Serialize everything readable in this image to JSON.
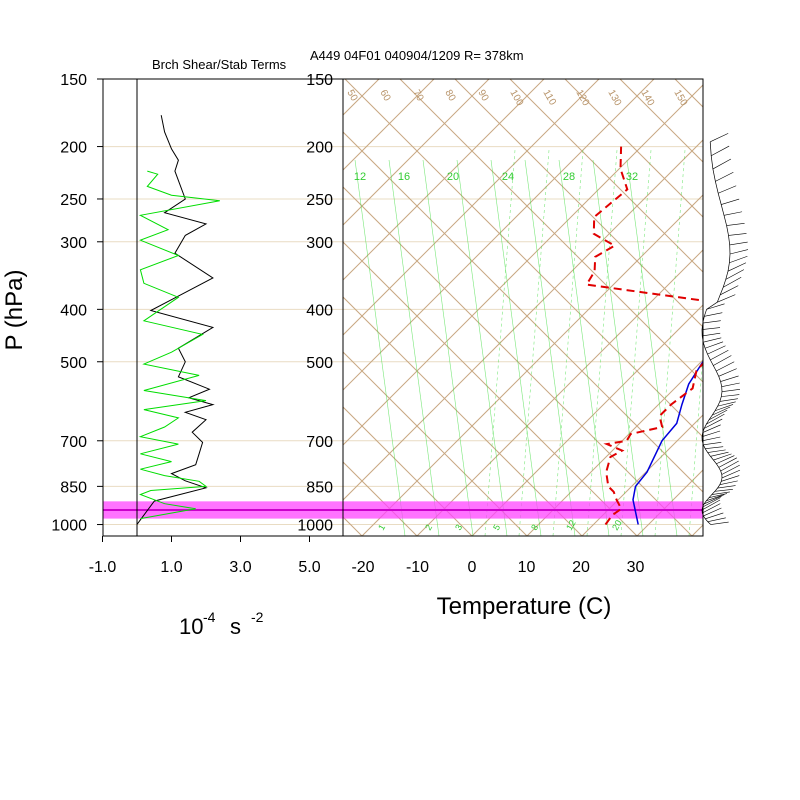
{
  "titles": {
    "left_panel": "Brch Shear/Stab Terms",
    "right_panel": "A449 04F01 040904/1209 R= 378km"
  },
  "axes": {
    "pressure_label": "P (hPa)",
    "pressure_ticks": [
      150,
      200,
      250,
      300,
      400,
      500,
      700,
      850,
      1000
    ],
    "shear_unit_base": "10",
    "shear_unit_exp": "-4",
    "shear_unit_s": "s",
    "shear_unit_exp2": "-2",
    "shear_ticks": [
      "-1.0",
      "1.0",
      "3.0",
      "5.0"
    ],
    "temperature_label": "Temperature (C)",
    "temperature_ticks": [
      "-20",
      "-10",
      "0",
      "10",
      "20",
      "30"
    ]
  },
  "skewt_labels": {
    "dry_adiabats": [
      "50",
      "60",
      "70",
      "80",
      "90",
      "100",
      "110",
      "120",
      "130",
      "140",
      "150"
    ],
    "mixing_ratio_top": [
      "12",
      "16",
      "20",
      "24",
      "28",
      "32"
    ],
    "mixing_ratio_bottom": [
      "1",
      "2",
      "3",
      "5",
      "8",
      "12",
      "20"
    ]
  },
  "colors": {
    "grid": "#c8a882",
    "isobar": "#e9dcc3",
    "temperature": "#0000dd",
    "dewpoint": "#e00000",
    "shear_term": "#000000",
    "stab_term": "#00dd00",
    "mixing_ratio": "#44dd44",
    "highlight": "#ff44ff"
  },
  "chart_data": [
    {
      "type": "line",
      "panel": "shear-stability",
      "ylim": [
        1000,
        150
      ],
      "xlim": [
        -1.0,
        5.0
      ],
      "series": [
        {
          "color": "black",
          "points": [
            [
              0.0,
              1000
            ],
            [
              0.1,
              980
            ],
            [
              0.5,
              905
            ],
            [
              2.0,
              855
            ],
            [
              1.4,
              830
            ],
            [
              1.0,
              805
            ],
            [
              1.7,
              775
            ],
            [
              1.8,
              740
            ],
            [
              1.9,
              705
            ],
            [
              1.6,
              675
            ],
            [
              2.0,
              640
            ],
            [
              1.4,
              620
            ],
            [
              2.2,
              600
            ],
            [
              1.5,
              583
            ],
            [
              2.1,
              562
            ],
            [
              1.2,
              533
            ],
            [
              1.4,
              500
            ],
            [
              1.2,
              472
            ],
            [
              2.2,
              432
            ],
            [
              0.4,
              402
            ],
            [
              1.2,
              378
            ],
            [
              2.2,
              350
            ],
            [
              1.1,
              315
            ],
            [
              1.4,
              292
            ],
            [
              2.0,
              278
            ],
            [
              0.8,
              265
            ],
            [
              1.4,
              250
            ],
            [
              1.1,
              222
            ],
            [
              1.2,
              212
            ],
            [
              1.0,
              202
            ],
            [
              0.8,
              188
            ],
            [
              0.7,
              175
            ]
          ]
        },
        {
          "color": "green",
          "points": [
            [
              0.1,
              975
            ],
            [
              1.7,
              935
            ],
            [
              0.8,
              915
            ],
            [
              0.1,
              880
            ],
            [
              0.4,
              865
            ],
            [
              2.0,
              850
            ],
            [
              1.8,
              832
            ],
            [
              0.8,
              812
            ],
            [
              0.1,
              790
            ],
            [
              1.0,
              765
            ],
            [
              0.1,
              740
            ],
            [
              1.2,
              710
            ],
            [
              0.1,
              688
            ],
            [
              0.8,
              660
            ],
            [
              1.2,
              635
            ],
            [
              0.2,
              613
            ],
            [
              2.0,
              590
            ],
            [
              0.2,
              565
            ],
            [
              1.8,
              530
            ],
            [
              0.2,
              505
            ],
            [
              1.0,
              480
            ],
            [
              1.9,
              445
            ],
            [
              0.2,
              420
            ],
            [
              1.2,
              380
            ],
            [
              0.2,
              358
            ],
            [
              0.1,
              338
            ],
            [
              1.2,
              318
            ],
            [
              0.1,
              298
            ],
            [
              0.9,
              285
            ],
            [
              0.1,
              268
            ],
            [
              2.4,
              252
            ],
            [
              1.0,
              246
            ],
            [
              0.3,
              237
            ],
            [
              0.6,
              225
            ],
            [
              0.3,
              222
            ]
          ]
        }
      ],
      "highlight_band_hpa": [
        906,
        975
      ]
    },
    {
      "type": "line",
      "panel": "skew-t",
      "xlabel": "Temperature (C)",
      "xlim": [
        -23,
        40
      ],
      "ylim": [
        1000,
        150
      ],
      "series": [
        {
          "color": "blue",
          "points": [
            [
              30.5,
              1000
            ],
            [
              25,
              900
            ],
            [
              23,
              850
            ],
            [
              22.5,
              800
            ],
            [
              19.5,
              700
            ],
            [
              19,
              650
            ],
            [
              16.5,
              600
            ],
            [
              14,
              550
            ],
            [
              12.5,
              500
            ],
            [
              11,
              450
            ],
            [
              11,
              400
            ],
            [
              7,
              350
            ],
            [
              3,
              300
            ],
            [
              -1.5,
              250
            ],
            [
              -4.5,
              220
            ],
            [
              -8.5,
              200
            ],
            [
              -16,
              175
            ]
          ]
        },
        {
          "color": "red",
          "dashed": true,
          "points": [
            [
              24.5,
              1000
            ],
            [
              24,
              960
            ],
            [
              24.5,
              935
            ],
            [
              22,
              900
            ],
            [
              20,
              870
            ],
            [
              18,
              850
            ],
            [
              15,
              800
            ],
            [
              13,
              750
            ],
            [
              14,
              730
            ],
            [
              10,
              710
            ],
            [
              13,
              700
            ],
            [
              12.5,
              680
            ],
            [
              17,
              660
            ],
            [
              14.5,
              630
            ],
            [
              14.5,
              600
            ],
            [
              15.5,
              560
            ],
            [
              13,
              520
            ],
            [
              12.5,
              470
            ],
            [
              11,
              430
            ],
            [
              8.5,
              400
            ],
            [
              1,
              385
            ],
            [
              -23,
              360
            ],
            [
              -24,
              340
            ],
            [
              -26.5,
              320
            ],
            [
              -25,
              305
            ],
            [
              -31,
              290
            ],
            [
              -34,
              270
            ],
            [
              -33,
              240
            ],
            [
              -38,
              220
            ],
            [
              -42,
              200
            ]
          ]
        }
      ],
      "highlight_band_hpa": [
        906,
        975
      ]
    }
  ]
}
